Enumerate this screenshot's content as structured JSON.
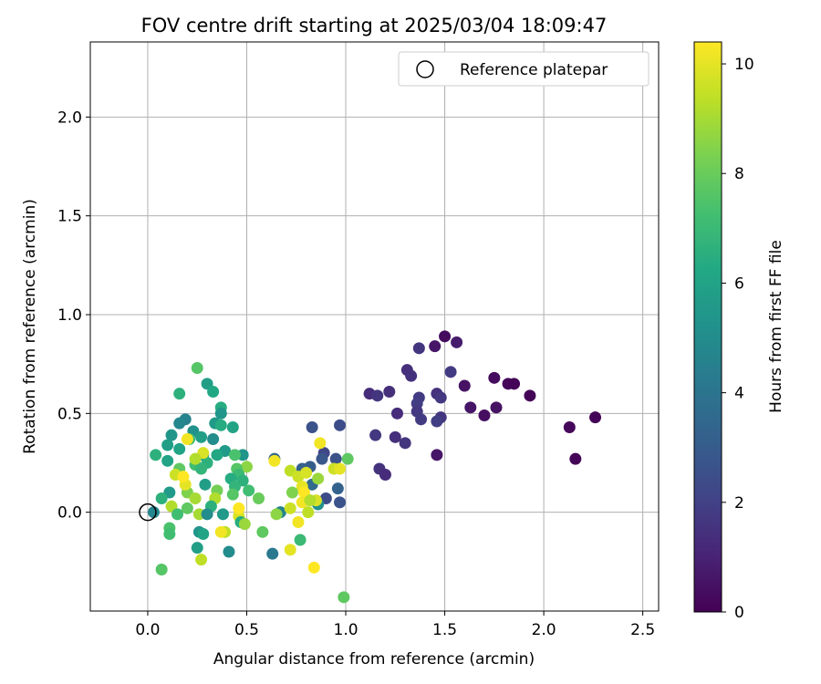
{
  "chart_data": {
    "type": "scatter",
    "title": "FOV centre drift starting at 2025/03/04 18:09:47",
    "xlabel": "Angular distance from reference (arcmin)",
    "ylabel": "Rotation from reference (arcmin)",
    "xlim": [
      -0.29,
      2.58
    ],
    "ylim": [
      -0.5,
      2.38
    ],
    "xticks": [
      0.0,
      0.5,
      1.0,
      1.5,
      2.0,
      2.5
    ],
    "xtick_labels": [
      "0.0",
      "0.5",
      "1.0",
      "1.5",
      "2.0",
      "2.5"
    ],
    "yticks": [
      0.0,
      0.5,
      1.0,
      1.5,
      2.0
    ],
    "ytick_labels": [
      "0.0",
      "0.5",
      "1.0",
      "1.5",
      "2.0"
    ],
    "grid": true,
    "legend": {
      "location": "top-right",
      "entries": [
        "Reference platepar"
      ]
    },
    "reference_point": {
      "x": 0.0,
      "y": 0.0
    },
    "colorbar": {
      "label": "Hours from first FF file",
      "min": 0,
      "max": 10.4,
      "ticks": [
        0,
        2,
        4,
        6,
        8,
        10
      ],
      "tick_labels": [
        "0",
        "2",
        "4",
        "6",
        "8",
        "10"
      ],
      "colormap": "viridis"
    },
    "points": [
      {
        "x": 1.5,
        "y": 0.89,
        "c": 0.3
      },
      {
        "x": 1.56,
        "y": 0.86,
        "c": 0.8
      },
      {
        "x": 1.45,
        "y": 0.84,
        "c": 0.6
      },
      {
        "x": 1.37,
        "y": 0.83,
        "c": 1.6
      },
      {
        "x": 1.53,
        "y": 0.71,
        "c": 1.8
      },
      {
        "x": 1.31,
        "y": 0.72,
        "c": 1.4
      },
      {
        "x": 1.33,
        "y": 0.69,
        "c": 1.5
      },
      {
        "x": 1.75,
        "y": 0.68,
        "c": 0.3
      },
      {
        "x": 1.6,
        "y": 0.64,
        "c": 0.5
      },
      {
        "x": 1.82,
        "y": 0.65,
        "c": 0.2
      },
      {
        "x": 1.85,
        "y": 0.65,
        "c": 0.1
      },
      {
        "x": 1.12,
        "y": 0.6,
        "c": 1.3
      },
      {
        "x": 1.16,
        "y": 0.59,
        "c": 1.6
      },
      {
        "x": 1.22,
        "y": 0.61,
        "c": 1.4
      },
      {
        "x": 1.46,
        "y": 0.6,
        "c": 1.5
      },
      {
        "x": 1.93,
        "y": 0.59,
        "c": 0.1
      },
      {
        "x": 1.48,
        "y": 0.58,
        "c": 1.7
      },
      {
        "x": 1.37,
        "y": 0.58,
        "c": 1.8
      },
      {
        "x": 1.36,
        "y": 0.55,
        "c": 1.9
      },
      {
        "x": 1.63,
        "y": 0.53,
        "c": 0.6
      },
      {
        "x": 1.76,
        "y": 0.53,
        "c": 0.5
      },
      {
        "x": 1.7,
        "y": 0.49,
        "c": 0.4
      },
      {
        "x": 1.36,
        "y": 0.51,
        "c": 1.7
      },
      {
        "x": 1.26,
        "y": 0.5,
        "c": 1.3
      },
      {
        "x": 1.48,
        "y": 0.48,
        "c": 1.6
      },
      {
        "x": 1.38,
        "y": 0.47,
        "c": 1.8
      },
      {
        "x": 1.46,
        "y": 0.46,
        "c": 1.9
      },
      {
        "x": 2.26,
        "y": 0.48,
        "c": 0.1
      },
      {
        "x": 2.13,
        "y": 0.43,
        "c": 0.2
      },
      {
        "x": 1.15,
        "y": 0.39,
        "c": 1.7
      },
      {
        "x": 1.25,
        "y": 0.38,
        "c": 1.4
      },
      {
        "x": 1.3,
        "y": 0.35,
        "c": 1.6
      },
      {
        "x": 1.46,
        "y": 0.29,
        "c": 0.6
      },
      {
        "x": 2.16,
        "y": 0.27,
        "c": 0.1
      },
      {
        "x": 1.17,
        "y": 0.22,
        "c": 1.5
      },
      {
        "x": 1.2,
        "y": 0.19,
        "c": 1.3
      },
      {
        "x": 0.97,
        "y": 0.44,
        "c": 2.4
      },
      {
        "x": 0.83,
        "y": 0.43,
        "c": 2.6
      },
      {
        "x": 0.89,
        "y": 0.3,
        "c": 2.2
      },
      {
        "x": 0.88,
        "y": 0.27,
        "c": 2.8
      },
      {
        "x": 0.95,
        "y": 0.27,
        "c": 2.6
      },
      {
        "x": 0.82,
        "y": 0.23,
        "c": 3.0
      },
      {
        "x": 0.78,
        "y": 0.22,
        "c": 3.2
      },
      {
        "x": 0.97,
        "y": 0.05,
        "c": 2.6
      },
      {
        "x": 0.9,
        "y": 0.07,
        "c": 2.4
      },
      {
        "x": 0.64,
        "y": 0.27,
        "c": 3.4
      },
      {
        "x": 0.63,
        "y": -0.21,
        "c": 4.2
      },
      {
        "x": 0.83,
        "y": 0.14,
        "c": 3.6
      },
      {
        "x": 0.96,
        "y": 0.12,
        "c": 3.3
      },
      {
        "x": 0.86,
        "y": 0.04,
        "c": 5.2
      },
      {
        "x": 0.67,
        "y": 0.0,
        "c": 4.6
      },
      {
        "x": 0.3,
        "y": 0.65,
        "c": 5.8
      },
      {
        "x": 0.33,
        "y": 0.61,
        "c": 6.2
      },
      {
        "x": 0.16,
        "y": 0.6,
        "c": 6.6
      },
      {
        "x": 0.25,
        "y": 0.73,
        "c": 7.6
      },
      {
        "x": 0.37,
        "y": 0.53,
        "c": 6.4
      },
      {
        "x": 0.37,
        "y": 0.5,
        "c": 5.4
      },
      {
        "x": 0.19,
        "y": 0.47,
        "c": 4.6
      },
      {
        "x": 0.16,
        "y": 0.45,
        "c": 4.8
      },
      {
        "x": 0.34,
        "y": 0.45,
        "c": 5.6
      },
      {
        "x": 0.37,
        "y": 0.44,
        "c": 6.4
      },
      {
        "x": 0.43,
        "y": 0.43,
        "c": 6.0
      },
      {
        "x": 0.23,
        "y": 0.41,
        "c": 5.2
      },
      {
        "x": 0.12,
        "y": 0.39,
        "c": 5.4
      },
      {
        "x": 0.27,
        "y": 0.38,
        "c": 5.8
      },
      {
        "x": 0.33,
        "y": 0.37,
        "c": 5.0
      },
      {
        "x": 0.21,
        "y": 0.37,
        "c": 7.0
      },
      {
        "x": 0.1,
        "y": 0.34,
        "c": 5.8
      },
      {
        "x": 0.16,
        "y": 0.32,
        "c": 6.0
      },
      {
        "x": 0.39,
        "y": 0.31,
        "c": 5.6
      },
      {
        "x": 0.48,
        "y": 0.29,
        "c": 5.4
      },
      {
        "x": 0.44,
        "y": 0.29,
        "c": 7.4
      },
      {
        "x": 0.04,
        "y": 0.29,
        "c": 6.6
      },
      {
        "x": 0.28,
        "y": 0.29,
        "c": 5.2
      },
      {
        "x": 0.35,
        "y": 0.29,
        "c": 6.2
      },
      {
        "x": 0.1,
        "y": 0.26,
        "c": 6.0
      },
      {
        "x": 0.3,
        "y": 0.25,
        "c": 6.6
      },
      {
        "x": 0.24,
        "y": 0.24,
        "c": 7.2
      },
      {
        "x": 0.5,
        "y": 0.23,
        "c": 8.6
      },
      {
        "x": 0.45,
        "y": 0.22,
        "c": 7.6
      },
      {
        "x": 0.27,
        "y": 0.22,
        "c": 6.8
      },
      {
        "x": 0.16,
        "y": 0.22,
        "c": 7.8
      },
      {
        "x": 0.46,
        "y": 0.19,
        "c": 7.0
      },
      {
        "x": 0.42,
        "y": 0.17,
        "c": 6.4
      },
      {
        "x": 0.48,
        "y": 0.16,
        "c": 6.6
      },
      {
        "x": 0.44,
        "y": 0.13,
        "c": 6.8
      },
      {
        "x": 0.29,
        "y": 0.14,
        "c": 5.8
      },
      {
        "x": 0.35,
        "y": 0.11,
        "c": 8.2
      },
      {
        "x": 0.51,
        "y": 0.11,
        "c": 7.2
      },
      {
        "x": 0.11,
        "y": 0.1,
        "c": 5.6
      },
      {
        "x": 0.2,
        "y": 0.1,
        "c": 8.4
      },
      {
        "x": 0.43,
        "y": 0.09,
        "c": 7.6
      },
      {
        "x": 0.56,
        "y": 0.07,
        "c": 8.0
      },
      {
        "x": 0.07,
        "y": 0.07,
        "c": 6.6
      },
      {
        "x": 0.34,
        "y": 0.07,
        "c": 9.2
      },
      {
        "x": 0.24,
        "y": 0.07,
        "c": 9.0
      },
      {
        "x": 0.12,
        "y": 0.03,
        "c": 9.2
      },
      {
        "x": 0.2,
        "y": 0.02,
        "c": 7.8
      },
      {
        "x": 0.32,
        "y": 0.03,
        "c": 6.6
      },
      {
        "x": 0.03,
        "y": 0.0,
        "c": 4.8
      },
      {
        "x": 0.15,
        "y": -0.01,
        "c": 7.2
      },
      {
        "x": 0.26,
        "y": -0.01,
        "c": 9.0
      },
      {
        "x": 0.38,
        "y": -0.01,
        "c": 5.6
      },
      {
        "x": 0.3,
        "y": -0.01,
        "c": 5.0
      },
      {
        "x": 0.46,
        "y": -0.02,
        "c": 9.8
      },
      {
        "x": 0.47,
        "y": -0.05,
        "c": 6.4
      },
      {
        "x": 0.49,
        "y": -0.06,
        "c": 8.8
      },
      {
        "x": 0.11,
        "y": -0.08,
        "c": 7.4
      },
      {
        "x": 0.11,
        "y": -0.11,
        "c": 7.2
      },
      {
        "x": 0.26,
        "y": -0.1,
        "c": 5.4
      },
      {
        "x": 0.39,
        "y": -0.1,
        "c": 9.4
      },
      {
        "x": 0.28,
        "y": -0.11,
        "c": 6.0
      },
      {
        "x": 0.41,
        "y": -0.2,
        "c": 5.0
      },
      {
        "x": 0.25,
        "y": -0.18,
        "c": 5.8
      },
      {
        "x": 0.27,
        "y": -0.24,
        "c": 9.4
      },
      {
        "x": 0.07,
        "y": -0.29,
        "c": 7.6
      },
      {
        "x": 0.58,
        "y": -0.1,
        "c": 7.8
      },
      {
        "x": 0.64,
        "y": 0.26,
        "c": 10.2
      },
      {
        "x": 0.72,
        "y": 0.21,
        "c": 9.4
      },
      {
        "x": 0.76,
        "y": 0.18,
        "c": 9.6
      },
      {
        "x": 0.8,
        "y": 0.2,
        "c": 9.8
      },
      {
        "x": 0.86,
        "y": 0.17,
        "c": 8.8
      },
      {
        "x": 0.94,
        "y": 0.22,
        "c": 9.6
      },
      {
        "x": 0.97,
        "y": 0.22,
        "c": 10.0
      },
      {
        "x": 1.01,
        "y": 0.27,
        "c": 7.8
      },
      {
        "x": 0.87,
        "y": 0.35,
        "c": 10.2
      },
      {
        "x": 0.78,
        "y": 0.13,
        "c": 10.0
      },
      {
        "x": 0.79,
        "y": 0.1,
        "c": 10.4
      },
      {
        "x": 0.73,
        "y": 0.1,
        "c": 8.4
      },
      {
        "x": 0.85,
        "y": 0.06,
        "c": 9.8
      },
      {
        "x": 0.78,
        "y": 0.05,
        "c": 10.2
      },
      {
        "x": 0.82,
        "y": 0.06,
        "c": 9.2
      },
      {
        "x": 0.72,
        "y": 0.02,
        "c": 9.6
      },
      {
        "x": 0.81,
        "y": 0.0,
        "c": 9.4
      },
      {
        "x": 0.76,
        "y": -0.05,
        "c": 10.2
      },
      {
        "x": 0.65,
        "y": -0.01,
        "c": 8.6
      },
      {
        "x": 0.77,
        "y": -0.14,
        "c": 7.0
      },
      {
        "x": 0.72,
        "y": -0.19,
        "c": 10.0
      },
      {
        "x": 0.84,
        "y": -0.28,
        "c": 10.4
      },
      {
        "x": 0.99,
        "y": -0.43,
        "c": 7.8
      },
      {
        "x": 0.14,
        "y": 0.19,
        "c": 9.6
      },
      {
        "x": 0.28,
        "y": 0.3,
        "c": 9.8
      },
      {
        "x": 0.2,
        "y": 0.37,
        "c": 10.2
      },
      {
        "x": 0.19,
        "y": 0.14,
        "c": 10.0
      },
      {
        "x": 0.18,
        "y": 0.18,
        "c": 10.4
      },
      {
        "x": 0.24,
        "y": 0.27,
        "c": 9.2
      },
      {
        "x": 0.37,
        "y": -0.1,
        "c": 10.2
      },
      {
        "x": 0.46,
        "y": 0.02,
        "c": 10.4
      }
    ]
  }
}
